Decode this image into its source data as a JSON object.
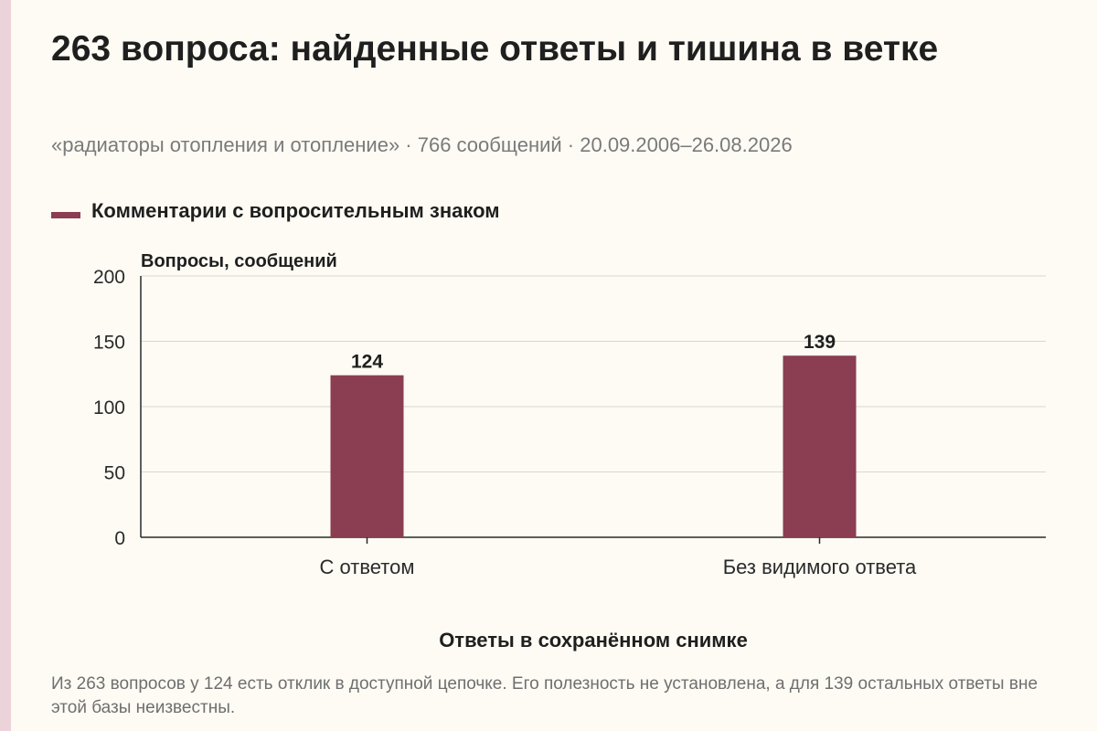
{
  "title": "263 вопроса: найденные ответы и тишина в ветке",
  "subtitle": "«радиаторы отопления и отопление» · 766 сообщений · 20.09.2006–26.08.2026",
  "legend": {
    "label": "Комментарии с вопросительным знаком",
    "color": "#8b3d52"
  },
  "chart_data": {
    "type": "bar",
    "categories": [
      "С ответом",
      "Без видимого ответа"
    ],
    "series": [
      {
        "name": "Комментарии с вопросительным знаком",
        "values": [
          124,
          139
        ],
        "color": "#8b3d52"
      }
    ],
    "ylabel": "Вопросы, сообщений",
    "xlabel": "Ответы в сохранённом снимке",
    "ylim": [
      0,
      200
    ],
    "yticks": [
      0,
      50,
      100,
      150,
      200
    ],
    "grid": true,
    "legend_position": "top-left"
  },
  "footnote": "Из 263 вопросов у 124 есть отклик в доступной цепочке. Его полезность не установлена, а для 139 остальных ответы вне этой базы неизвестны."
}
